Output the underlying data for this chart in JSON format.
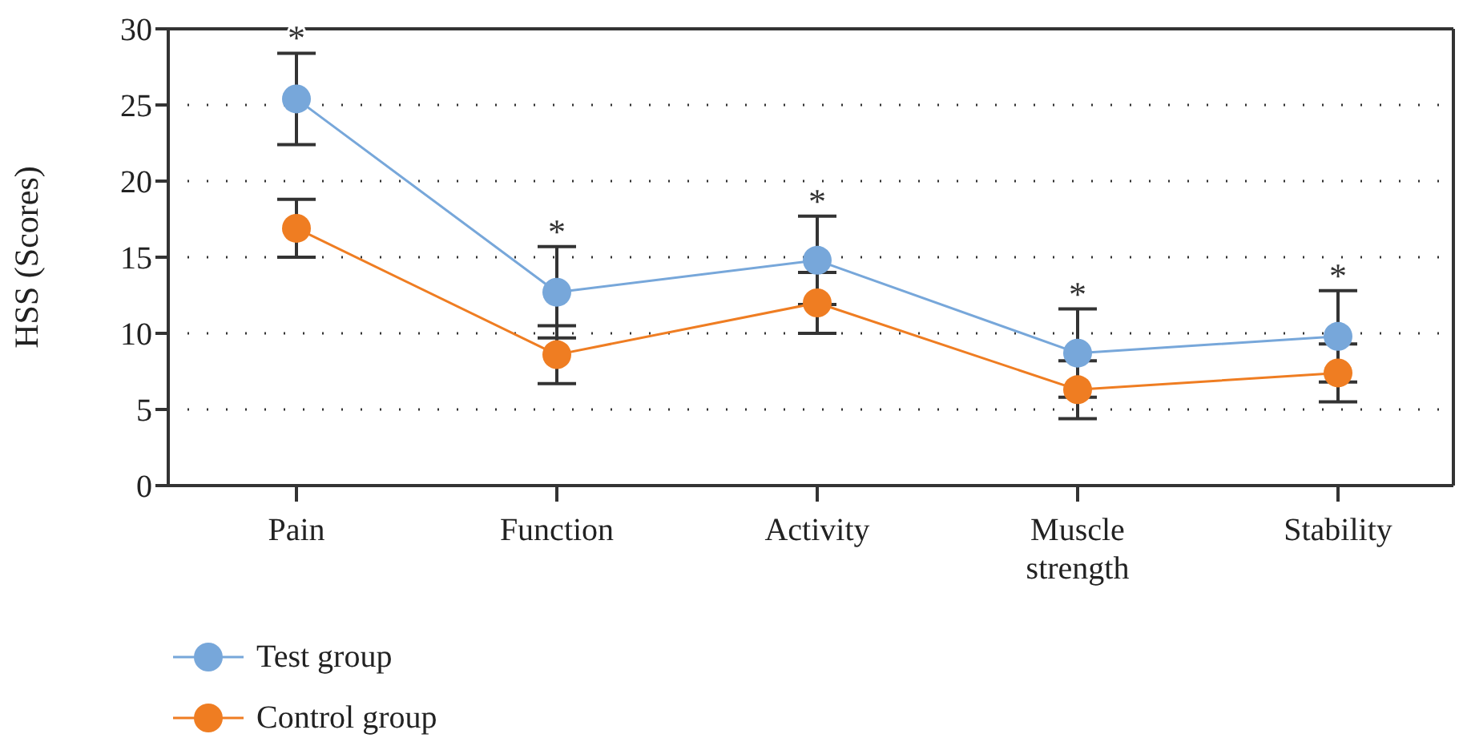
{
  "chart_data": {
    "type": "line",
    "ylabel": "HSS (Scores)",
    "categories": [
      "Pain",
      "Function",
      "Activity",
      "Muscle strength",
      "Stability"
    ],
    "series": [
      {
        "name": "Test group",
        "color": "#77a7da",
        "values": [
          25.4,
          12.7,
          14.8,
          8.7,
          9.8
        ],
        "errors": [
          3,
          3,
          2.9,
          2.9,
          3
        ]
      },
      {
        "name": "Control group",
        "color": "#ef7d22",
        "values": [
          16.9,
          8.6,
          12,
          6.3,
          7.4
        ],
        "errors": [
          1.9,
          1.9,
          2,
          1.9,
          1.9
        ]
      }
    ],
    "ylim": [
      0,
      30
    ],
    "yticks": [
      0,
      5,
      10,
      15,
      20,
      25,
      30
    ],
    "grid": "y",
    "legend": "bottom left",
    "marker": "circle",
    "line_style": "solid",
    "annotations": [
      "*",
      "*",
      "*",
      "*",
      "*"
    ]
  }
}
